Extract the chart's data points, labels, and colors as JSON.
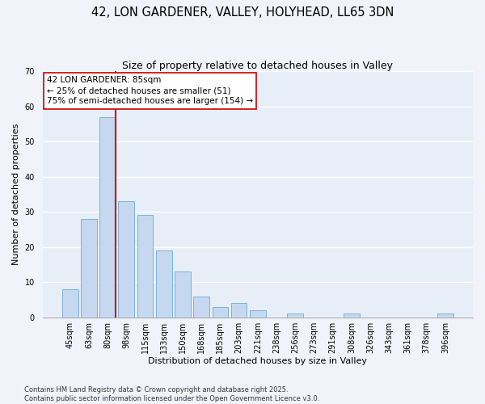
{
  "title": "42, LON GARDENER, VALLEY, HOLYHEAD, LL65 3DN",
  "subtitle": "Size of property relative to detached houses in Valley",
  "xlabel": "Distribution of detached houses by size in Valley",
  "ylabel": "Number of detached properties",
  "categories": [
    "45sqm",
    "63sqm",
    "80sqm",
    "98sqm",
    "115sqm",
    "133sqm",
    "150sqm",
    "168sqm",
    "185sqm",
    "203sqm",
    "221sqm",
    "238sqm",
    "256sqm",
    "273sqm",
    "291sqm",
    "308sqm",
    "326sqm",
    "343sqm",
    "361sqm",
    "378sqm",
    "396sqm"
  ],
  "values": [
    8,
    28,
    57,
    33,
    29,
    19,
    13,
    6,
    3,
    4,
    2,
    0,
    1,
    0,
    0,
    1,
    0,
    0,
    0,
    0,
    1
  ],
  "bar_color": "#c5d8f0",
  "bar_edge_color": "#7ab3d9",
  "vline_x_index": 2,
  "vline_color": "#cc0000",
  "ylim": [
    0,
    70
  ],
  "yticks": [
    0,
    10,
    20,
    30,
    40,
    50,
    60,
    70
  ],
  "annotation_text_line1": "42 LON GARDENER: 85sqm",
  "annotation_text_line2": "← 25% of detached houses are smaller (51)",
  "annotation_text_line3": "75% of semi-detached houses are larger (154) →",
  "footer1": "Contains HM Land Registry data © Crown copyright and database right 2025.",
  "footer2": "Contains public sector information licensed under the Open Government Licence v3.0.",
  "background_color": "#f0f4fa",
  "plot_bg_color": "#e8eef8",
  "title_fontsize": 10.5,
  "subtitle_fontsize": 9,
  "axis_label_fontsize": 8,
  "tick_fontsize": 7,
  "annotation_fontsize": 7.5,
  "footer_fontsize": 6
}
